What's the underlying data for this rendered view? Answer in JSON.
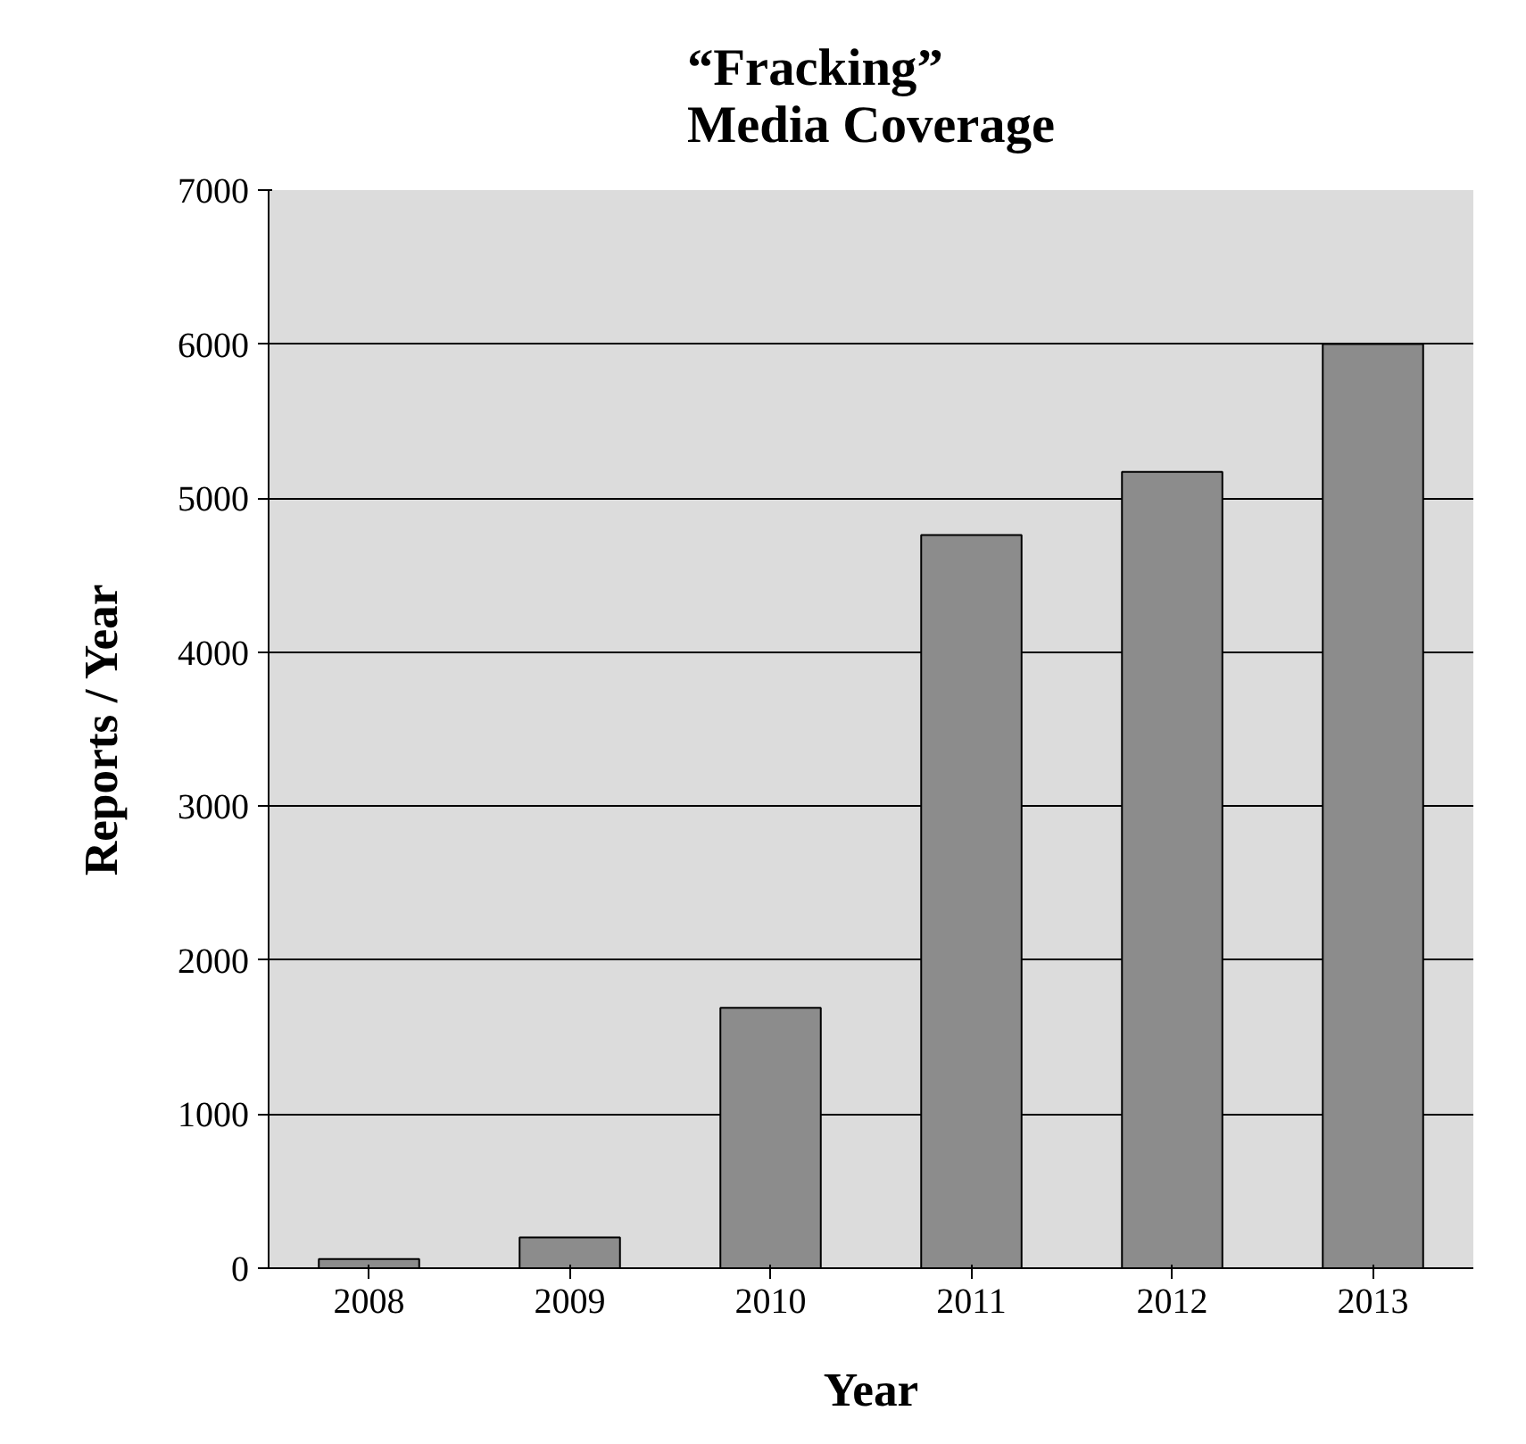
{
  "chart_data": {
    "type": "bar",
    "title": "“Fracking”\nMedia Coverage",
    "xlabel": "Year",
    "ylabel": "Reports / Year",
    "categories": [
      "2008",
      "2009",
      "2010",
      "2011",
      "2012",
      "2013"
    ],
    "values": [
      60,
      200,
      1690,
      4760,
      5170,
      6000
    ],
    "color": "#8c8c8c",
    "ylim": [
      0,
      7000
    ],
    "yticks": [
      0,
      1000,
      2000,
      3000,
      4000,
      5000,
      6000,
      7000
    ],
    "grid": "y"
  }
}
